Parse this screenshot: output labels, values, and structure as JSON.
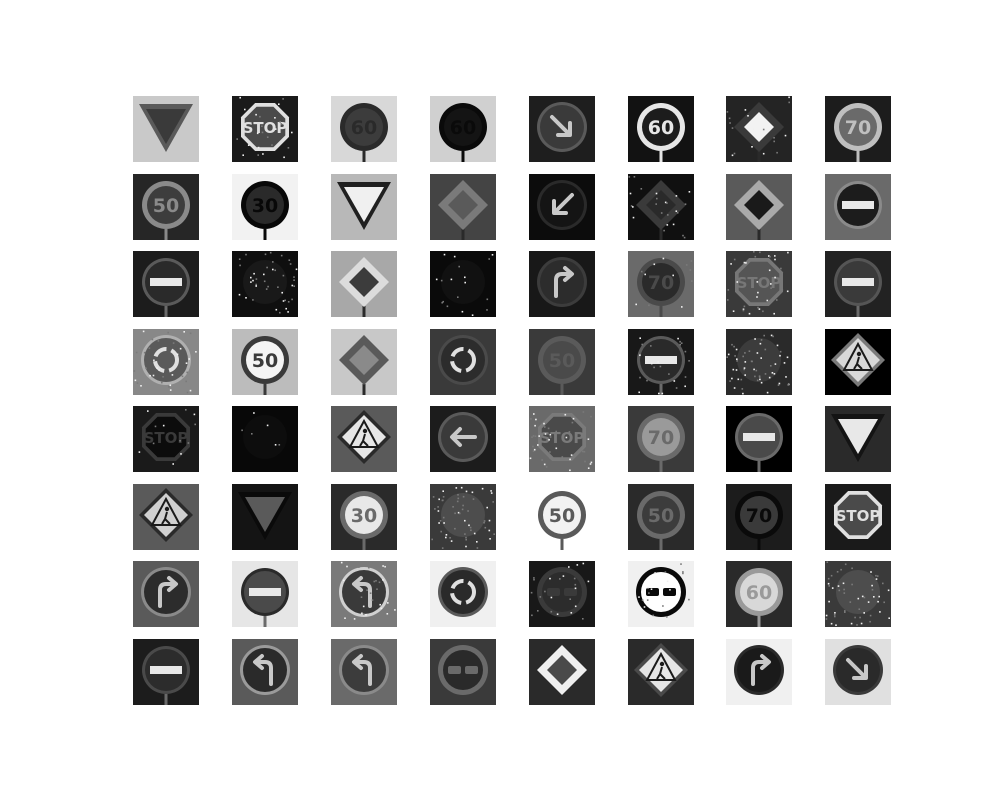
{
  "grid": {
    "rows": 8,
    "cols": 8,
    "tiles": [
      {
        "sign": "yield",
        "bg": "#c9c9c9",
        "fg": "#3a3a3a",
        "rim": "#5a5a5a",
        "noise": 0
      },
      {
        "sign": "stop",
        "text": "STOP",
        "bg": "#1a1a1a",
        "fg": "#4a4a4a",
        "rim": "#e0e0e0",
        "noise": 0.2
      },
      {
        "sign": "speed",
        "text": "60",
        "bg": "#d8d8d8",
        "fg": "#3c3c3c",
        "rim": "#2a2a2a",
        "noise": 0
      },
      {
        "sign": "speed",
        "text": "60",
        "bg": "#d0d0d0",
        "fg": "#141414",
        "rim": "#0a0a0a",
        "noise": 0
      },
      {
        "sign": "arrow",
        "dir": "down-right",
        "bg": "#1e1e1e",
        "fg": "#3a3a3a",
        "rim": "#5a5a5a",
        "noise": 0
      },
      {
        "sign": "speed",
        "text": "60",
        "bg": "#121212",
        "fg": "#1c1c1c",
        "rim": "#e6e6e6",
        "noise": 0
      },
      {
        "sign": "priority",
        "bg": "#242424",
        "fg": "#f2f2f2",
        "rim": "#3a3a3a",
        "noise": 0.15
      },
      {
        "sign": "speed",
        "text": "70",
        "bg": "#1c1c1c",
        "fg": "#6a6a6a",
        "rim": "#bfbfbf",
        "noise": 0
      },
      {
        "sign": "speed",
        "text": "50",
        "bg": "#262626",
        "fg": "#3d3d3d",
        "rim": "#8a8a8a",
        "noise": 0
      },
      {
        "sign": "speed",
        "text": "30",
        "bg": "#f2f2f2",
        "fg": "#2a2a2a",
        "rim": "#080808",
        "noise": 0
      },
      {
        "sign": "yield",
        "bg": "#b8b8b8",
        "fg": "#f0f0f0",
        "rim": "#202020",
        "noise": 0
      },
      {
        "sign": "priority",
        "bg": "#444444",
        "fg": "#5a5a5a",
        "rim": "#7a7a7a",
        "noise": 0
      },
      {
        "sign": "arrow",
        "dir": "down-left",
        "bg": "#0c0c0c",
        "fg": "#141414",
        "rim": "#2a2a2a",
        "noise": 0
      },
      {
        "sign": "priority",
        "bg": "#101010",
        "fg": "#2a2a2a",
        "rim": "#3a3a3a",
        "noise": 0.2
      },
      {
        "sign": "priority",
        "bg": "#5a5a5a",
        "fg": "#1a1a1a",
        "rim": "#aaaaaa",
        "noise": 0
      },
      {
        "sign": "noentry",
        "bg": "#6a6a6a",
        "fg": "#1c1c1c",
        "rim": "#8a8a8a",
        "noise": 0
      },
      {
        "sign": "noentry",
        "bg": "#1c1c1c",
        "fg": "#2a2a2a",
        "rim": "#5a5a5a",
        "noise": 0
      },
      {
        "sign": "blank",
        "bg": "#0f0f0f",
        "fg": "#1f1f1f",
        "rim": "#1f1f1f",
        "noise": 0.35
      },
      {
        "sign": "priority",
        "bg": "#a8a8a8",
        "fg": "#3c3c3c",
        "rim": "#dcdcdc",
        "noise": 0
      },
      {
        "sign": "blank",
        "bg": "#0a0a0a",
        "fg": "#161616",
        "rim": "#202020",
        "noise": 0.15
      },
      {
        "sign": "arrow",
        "dir": "turn-right",
        "bg": "#181818",
        "fg": "#2c2c2c",
        "rim": "#3c3c3c",
        "noise": 0
      },
      {
        "sign": "speed",
        "text": "70",
        "bg": "#6a6a6a",
        "fg": "#2a2a2a",
        "rim": "#4a4a4a",
        "noise": 0.1
      },
      {
        "sign": "stop",
        "text": "STOP",
        "bg": "#3a3a3a",
        "fg": "#555555",
        "rim": "#777777",
        "noise": 0.3
      },
      {
        "sign": "noentry",
        "bg": "#222222",
        "fg": "#3a3a3a",
        "rim": "#555555",
        "noise": 0
      },
      {
        "sign": "roundabout",
        "bg": "#888888",
        "fg": "#5a5a5a",
        "rim": "#b0b0b0",
        "noise": 0.3
      },
      {
        "sign": "speed",
        "text": "50",
        "bg": "#bcbcbc",
        "fg": "#f4f4f4",
        "rim": "#3a3a3a",
        "noise": 0
      },
      {
        "sign": "priority",
        "bg": "#c8c8c8",
        "fg": "#8a8a8a",
        "rim": "#5a5a5a",
        "noise": 0
      },
      {
        "sign": "roundabout",
        "bg": "#3a3a3a",
        "fg": "#2c2c2c",
        "rim": "#4a4a4a",
        "noise": 0
      },
      {
        "sign": "speed",
        "text": "50",
        "bg": "#3a3a3a",
        "fg": "#4a4a4a",
        "rim": "#5a5a5a",
        "noise": 0
      },
      {
        "sign": "noentry",
        "bg": "#181818",
        "fg": "#2a2a2a",
        "rim": "#5a5a5a",
        "noise": 0.2
      },
      {
        "sign": "blank",
        "bg": "#2a2a2a",
        "fg": "#4a4a4a",
        "rim": "#4a4a4a",
        "noise": 0.5
      },
      {
        "sign": "pedestrian",
        "bg": "#000000",
        "fg": "#d8d8d8",
        "rim": "#7a7a7a",
        "noise": 0
      },
      {
        "sign": "stop",
        "text": "STOP",
        "bg": "#1a1a1a",
        "fg": "#0c0c0c",
        "rim": "#3a3a3a",
        "noise": 0.1
      },
      {
        "sign": "blank",
        "bg": "#080808",
        "fg": "#101010",
        "rim": "#141414",
        "noise": 0.05
      },
      {
        "sign": "pedestrian",
        "bg": "#5a5a5a",
        "fg": "#e6e6e6",
        "rim": "#2a2a2a",
        "noise": 0
      },
      {
        "sign": "arrow",
        "dir": "left",
        "bg": "#1c1c1c",
        "fg": "#3a3a3a",
        "rim": "#5a5a5a",
        "noise": 0
      },
      {
        "sign": "stop",
        "text": "STOP",
        "bg": "#6a6a6a",
        "fg": "#4a4a4a",
        "rim": "#7a7a7a",
        "noise": 0.4
      },
      {
        "sign": "speed",
        "text": "70",
        "bg": "#3a3a3a",
        "fg": "#9a9a9a",
        "rim": "#6a6a6a",
        "noise": 0
      },
      {
        "sign": "noentry",
        "bg": "#000000",
        "fg": "#4a4a4a",
        "rim": "#6a6a6a",
        "noise": 0
      },
      {
        "sign": "yield",
        "bg": "#2a2a2a",
        "fg": "#e8e8e8",
        "rim": "#141414",
        "noise": 0
      },
      {
        "sign": "pedestrian",
        "bg": "#5a5a5a",
        "fg": "#d0d0d0",
        "rim": "#2a2a2a",
        "noise": 0
      },
      {
        "sign": "yield",
        "bg": "#141414",
        "fg": "#5a5a5a",
        "rim": "#0a0a0a",
        "noise": 0
      },
      {
        "sign": "speed",
        "text": "30",
        "bg": "#2a2a2a",
        "fg": "#e8e8e8",
        "rim": "#6a6a6a",
        "noise": 0
      },
      {
        "sign": "blank",
        "bg": "#3a3a3a",
        "fg": "#5a5a5a",
        "rim": "#5a5a5a",
        "noise": 0.5
      },
      {
        "sign": "speed",
        "text": "50",
        "bg": "#ffffff",
        "fg": "#f2f2f2",
        "rim": "#5a5a5a",
        "noise": 0
      },
      {
        "sign": "speed",
        "text": "50",
        "bg": "#2a2a2a",
        "fg": "#3c3c3c",
        "rim": "#6a6a6a",
        "noise": 0
      },
      {
        "sign": "speed",
        "text": "70",
        "bg": "#1c1c1c",
        "fg": "#3a3a3a",
        "rim": "#0a0a0a",
        "noise": 0
      },
      {
        "sign": "stop",
        "text": "STOP",
        "bg": "#1a1a1a",
        "fg": "#4a4a4a",
        "rim": "#e0e0e0",
        "noise": 0
      },
      {
        "sign": "arrow",
        "dir": "turn-right",
        "bg": "#5a5a5a",
        "fg": "#2c2c2c",
        "rim": "#8a8a8a",
        "noise": 0
      },
      {
        "sign": "noentry",
        "bg": "#e6e6e6",
        "fg": "#4a4a4a",
        "rim": "#2a2a2a",
        "noise": 0
      },
      {
        "sign": "arrow",
        "dir": "turn-left",
        "bg": "#7a7a7a",
        "fg": "#3a3a3a",
        "rim": "#d0d0d0",
        "noise": 0.3
      },
      {
        "sign": "roundabout",
        "bg": "#f0f0f0",
        "fg": "#2a2a2a",
        "rim": "#5a5a5a",
        "noise": 0
      },
      {
        "sign": "nopassing",
        "bg": "#181818",
        "fg": "#2c2c2c",
        "rim": "#3a3a3a",
        "noise": 0.2
      },
      {
        "sign": "nopassing",
        "bg": "#f0f0f0",
        "fg": "#ffffff",
        "rim": "#0a0a0a",
        "noise": 0.2
      },
      {
        "sign": "speed",
        "text": "60",
        "bg": "#2a2a2a",
        "fg": "#d8d8d8",
        "rim": "#9a9a9a",
        "noise": 0
      },
      {
        "sign": "blank",
        "bg": "#3a3a3a",
        "fg": "#5a5a5a",
        "rim": "#5a5a5a",
        "noise": 0.45
      },
      {
        "sign": "noentry",
        "bg": "#1c1c1c",
        "fg": "#2c2c2c",
        "rim": "#4a4a4a",
        "noise": 0
      },
      {
        "sign": "arrow",
        "dir": "turn-left",
        "bg": "#5a5a5a",
        "fg": "#2a2a2a",
        "rim": "#9a9a9a",
        "noise": 0
      },
      {
        "sign": "arrow",
        "dir": "turn-left",
        "bg": "#6a6a6a",
        "fg": "#3c3c3c",
        "rim": "#8a8a8a",
        "noise": 0
      },
      {
        "sign": "nopassing",
        "bg": "#3a3a3a",
        "fg": "#2a2a2a",
        "rim": "#6a6a6a",
        "noise": 0
      },
      {
        "sign": "priority",
        "bg": "#2a2a2a",
        "fg": "#4a4a4a",
        "rim": "#f0f0f0",
        "noise": 0
      },
      {
        "sign": "pedestrian",
        "bg": "#2a2a2a",
        "fg": "#e6e6e6",
        "rim": "#4a4a4a",
        "noise": 0
      },
      {
        "sign": "arrow",
        "dir": "turn-right",
        "bg": "#f0f0f0",
        "fg": "#1a1a1a",
        "rim": "#2a2a2a",
        "noise": 0
      },
      {
        "sign": "arrow",
        "dir": "down-right",
        "bg": "#e0e0e0",
        "fg": "#2a2a2a",
        "rim": "#3a3a3a",
        "noise": 0
      }
    ]
  }
}
